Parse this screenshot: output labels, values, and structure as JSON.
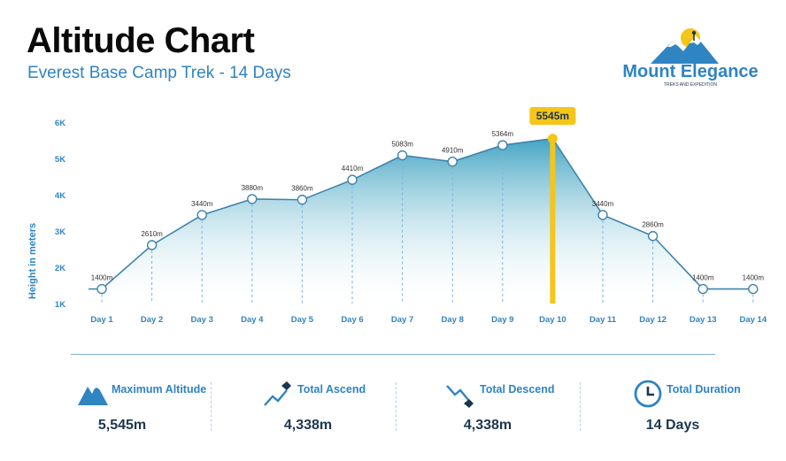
{
  "header": {
    "title": "Altitude Chart",
    "subtitle": "Everest Base Camp Trek - 14 Days"
  },
  "logo": {
    "name": "Mount Elegance",
    "tagline": "TREKS AND EXPEDITION"
  },
  "colors": {
    "accent": "#2f84c2",
    "line": "#3d84ad",
    "fill": "#4aaac8",
    "highlight": "#f5c518",
    "axis_text": "#2f84c2"
  },
  "chart_data": {
    "type": "area",
    "title": "",
    "xlabel": "",
    "ylabel": "Height in meters",
    "categories": [
      "Day 1",
      "Day 2",
      "Day 3",
      "Day 4",
      "Day 5",
      "Day 6",
      "Day 7",
      "Day 8",
      "Day 9",
      "Day 10",
      "Day 11",
      "Day 12",
      "Day 13",
      "Day 14"
    ],
    "values": [
      1400,
      2610,
      3440,
      3880,
      3860,
      4410,
      5083,
      4910,
      5364,
      5545,
      3440,
      2860,
      1400,
      1400
    ],
    "point_labels": [
      "1400m",
      "2610m",
      "3440m",
      "3880m",
      "3860m",
      "4410m",
      "5083m",
      "4910m",
      "5364m",
      "5545m",
      "3440m",
      "2860m",
      "1400m",
      "1400m"
    ],
    "yticks": [
      1000,
      2000,
      3000,
      4000,
      5000,
      6000
    ],
    "ytick_labels": [
      "1K",
      "2K",
      "3K",
      "4K",
      "5K",
      "6K"
    ],
    "ylim": [
      1000,
      6000
    ],
    "highlight_index": 9,
    "highlight_label": "5545m",
    "grid": false,
    "legend": "none"
  },
  "stats": [
    {
      "label": "Maximum Altitude",
      "value": "5,545m",
      "icon": "mountain-icon"
    },
    {
      "label": "Total Ascend",
      "value": "4,338m",
      "icon": "ascend-icon"
    },
    {
      "label": "Total Descend",
      "value": "4,338m",
      "icon": "descend-icon"
    },
    {
      "label": "Total Duration",
      "value": "14 Days",
      "icon": "clock-icon"
    }
  ]
}
